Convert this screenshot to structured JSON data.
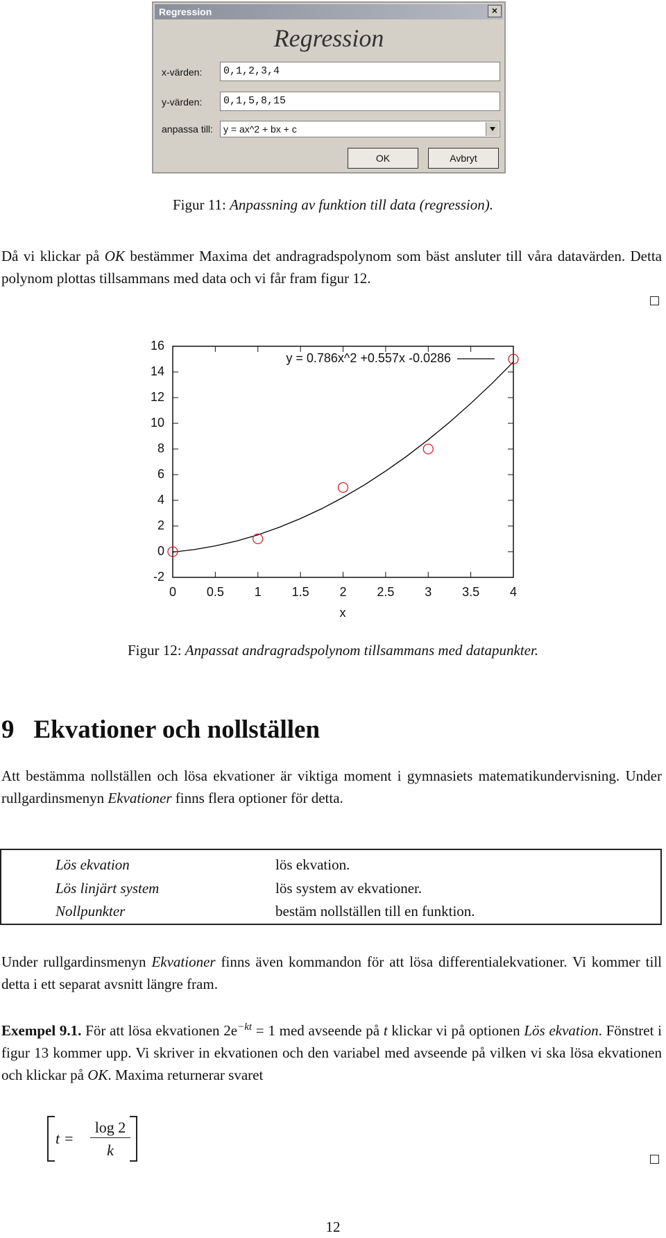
{
  "dialog": {
    "window_title": "Regression",
    "heading": "Regression",
    "fields": [
      {
        "label": "x-värden:",
        "value": "0,1,2,3,4"
      },
      {
        "label": "y-värden:",
        "value": "0,1,5,8,15"
      },
      {
        "label": "anpassa till:",
        "value": "y = ax^2 + bx + c"
      }
    ],
    "buttons": [
      "OK",
      "Avbryt"
    ]
  },
  "figure11": {
    "label": "Figur 11:",
    "caption": "Anpassning av funktion till data (regression)."
  },
  "paragraph1": [
    "Då vi klickar på ",
    "OK",
    " bestämmer Maxima det andragradspolynom som bäst ansluter till våra datavärden. Detta polynom plottas tillsammans med data och vi får fram figur 12."
  ],
  "chart_data": {
    "type": "scatter",
    "xlabel": "x",
    "xlim": [
      0,
      4
    ],
    "ylim": [
      -2,
      16
    ],
    "xticks": [
      0,
      0.5,
      1,
      1.5,
      2,
      2.5,
      3,
      3.5,
      4
    ],
    "yticks": [
      -2,
      0,
      2,
      4,
      6,
      8,
      10,
      12,
      14,
      16
    ],
    "legend": "upper right",
    "series": [
      {
        "name": "y = 0.786x^2 +0.557x -0.0286",
        "type": "line",
        "color": "#000000",
        "x": [
          0,
          0.25,
          0.5,
          0.75,
          1,
          1.25,
          1.5,
          1.75,
          2,
          2.25,
          2.5,
          2.75,
          3,
          3.25,
          3.5,
          3.75,
          4
        ],
        "values": [
          -0.03,
          0.16,
          0.45,
          0.83,
          1.31,
          1.9,
          2.58,
          3.35,
          4.23,
          5.2,
          6.28,
          7.45,
          8.72,
          10.08,
          11.55,
          13.11,
          14.78
        ]
      },
      {
        "type": "scatter",
        "color": "#d8232a",
        "x": [
          0,
          1,
          2,
          3,
          4
        ],
        "values": [
          0,
          1,
          5,
          8,
          15
        ]
      }
    ]
  },
  "figure12": {
    "label": "Figur 12:",
    "caption": "Anpassat andragradspolynom tillsammans med datapunkter."
  },
  "section": {
    "number": "9",
    "title": "Ekvationer och nollställen"
  },
  "paragraph2": [
    "Att bestämma nollställen och lösa ekvationer är viktiga moment i gymnasiets matematikundervisning. Under rullgardinsmenyn ",
    "Ekvationer",
    " finns flera optioner för detta."
  ],
  "table": {
    "rows": [
      [
        "Lös ekvation",
        "lös ekvation."
      ],
      [
        "Lös linjärt system",
        "lös system av ekvationer."
      ],
      [
        "Nollpunkter",
        "bestäm nollställen till en funktion."
      ]
    ]
  },
  "paragraph3": [
    "Under rullgardinsmenyn ",
    "Ekvationer",
    " finns även kommandon för att lösa differentialekvationer. Vi kommer till detta i ett separat avsnitt längre fram."
  ],
  "example": {
    "label": "Exempel 9.1.",
    "text": [
      " För att lösa ekvationen ",
      "2e",
      "−kt",
      " = 1",
      " med avseende på ",
      "t",
      " klickar vi på optionen ",
      "Lös ekvation",
      ". Fönstret i figur 13 kommer upp. Vi skriver in ekvationen och den variabel med avseende på vilken vi ska lösa ekvationen och klickar på ",
      "OK",
      ". Maxima returnerar svaret"
    ]
  },
  "result": {
    "lhs": "t =",
    "numerator": "log 2",
    "denominator": "k"
  },
  "page_number": "12"
}
